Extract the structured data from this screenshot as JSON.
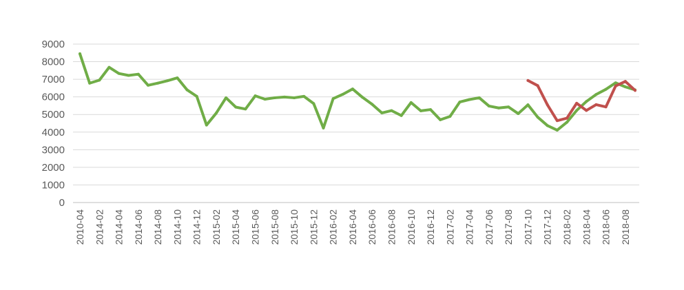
{
  "chart_data": {
    "type": "line",
    "title": "",
    "xlabel": "",
    "ylabel": "",
    "ylim": [
      0,
      9000
    ],
    "y_ticks": [
      0,
      1000,
      2000,
      3000,
      4000,
      5000,
      6000,
      7000,
      8000,
      9000
    ],
    "grid": true,
    "legend": "none",
    "x": [
      "2010-04",
      "2014-01",
      "2014-02",
      "2014-03",
      "2014-04",
      "2014-05",
      "2014-06",
      "2014-07",
      "2014-08",
      "2014-09",
      "2014-10",
      "2014-11",
      "2014-12",
      "2015-01",
      "2015-02",
      "2015-03",
      "2015-04",
      "2015-05",
      "2015-06",
      "2015-07",
      "2015-08",
      "2015-09",
      "2015-10",
      "2015-11",
      "2015-12",
      "2016-01",
      "2016-02",
      "2016-03",
      "2016-04",
      "2016-05",
      "2016-06",
      "2016-07",
      "2016-08",
      "2016-09",
      "2016-10",
      "2016-11",
      "2016-12",
      "2017-01",
      "2017-02",
      "2017-03",
      "2017-04",
      "2017-05",
      "2017-06",
      "2017-07",
      "2017-08",
      "2017-09",
      "2017-10",
      "2017-11",
      "2017-12",
      "2018-01",
      "2018-02",
      "2018-03",
      "2018-04",
      "2018-05",
      "2018-06",
      "2018-07",
      "2018-08",
      "2018-09"
    ],
    "tick_labels": [
      "2010-04",
      "2014-02",
      "2014-04",
      "2014-06",
      "2014-08",
      "2014-10",
      "2014-12",
      "2015-02",
      "2015-04",
      "2015-06",
      "2015-08",
      "2015-10",
      "2015-12",
      "2016-02",
      "2016-04",
      "2016-06",
      "2016-08",
      "2016-10",
      "2016-12",
      "2017-02",
      "2017-04",
      "2017-06",
      "2017-08",
      "2017-10",
      "2017-12",
      "2018-02",
      "2018-04",
      "2018-06",
      "2018-08"
    ],
    "series": [
      {
        "color": "#70AD47",
        "values": [
          8450,
          6780,
          6950,
          7680,
          7330,
          7220,
          7290,
          6660,
          6780,
          6920,
          7080,
          6400,
          6030,
          4400,
          5080,
          5950,
          5420,
          5310,
          6060,
          5870,
          5950,
          5990,
          5950,
          6030,
          5620,
          4230,
          5900,
          6150,
          6450,
          5980,
          5580,
          5090,
          5220,
          4940,
          5680,
          5210,
          5280,
          4700,
          4890,
          5710,
          5850,
          5950,
          5480,
          5370,
          5430,
          5050,
          5550,
          4850,
          4370,
          4110,
          4560,
          5230,
          5740,
          6140,
          6430,
          6800,
          6570,
          6400
        ]
      },
      {
        "color": "#C0504D",
        "values": [
          null,
          null,
          null,
          null,
          null,
          null,
          null,
          null,
          null,
          null,
          null,
          null,
          null,
          null,
          null,
          null,
          null,
          null,
          null,
          null,
          null,
          null,
          null,
          null,
          null,
          null,
          null,
          null,
          null,
          null,
          null,
          null,
          null,
          null,
          null,
          null,
          null,
          null,
          null,
          null,
          null,
          null,
          null,
          null,
          null,
          null,
          6930,
          6640,
          5550,
          4650,
          4790,
          5640,
          5230,
          5560,
          5430,
          6620,
          6880,
          6370
        ]
      }
    ]
  }
}
